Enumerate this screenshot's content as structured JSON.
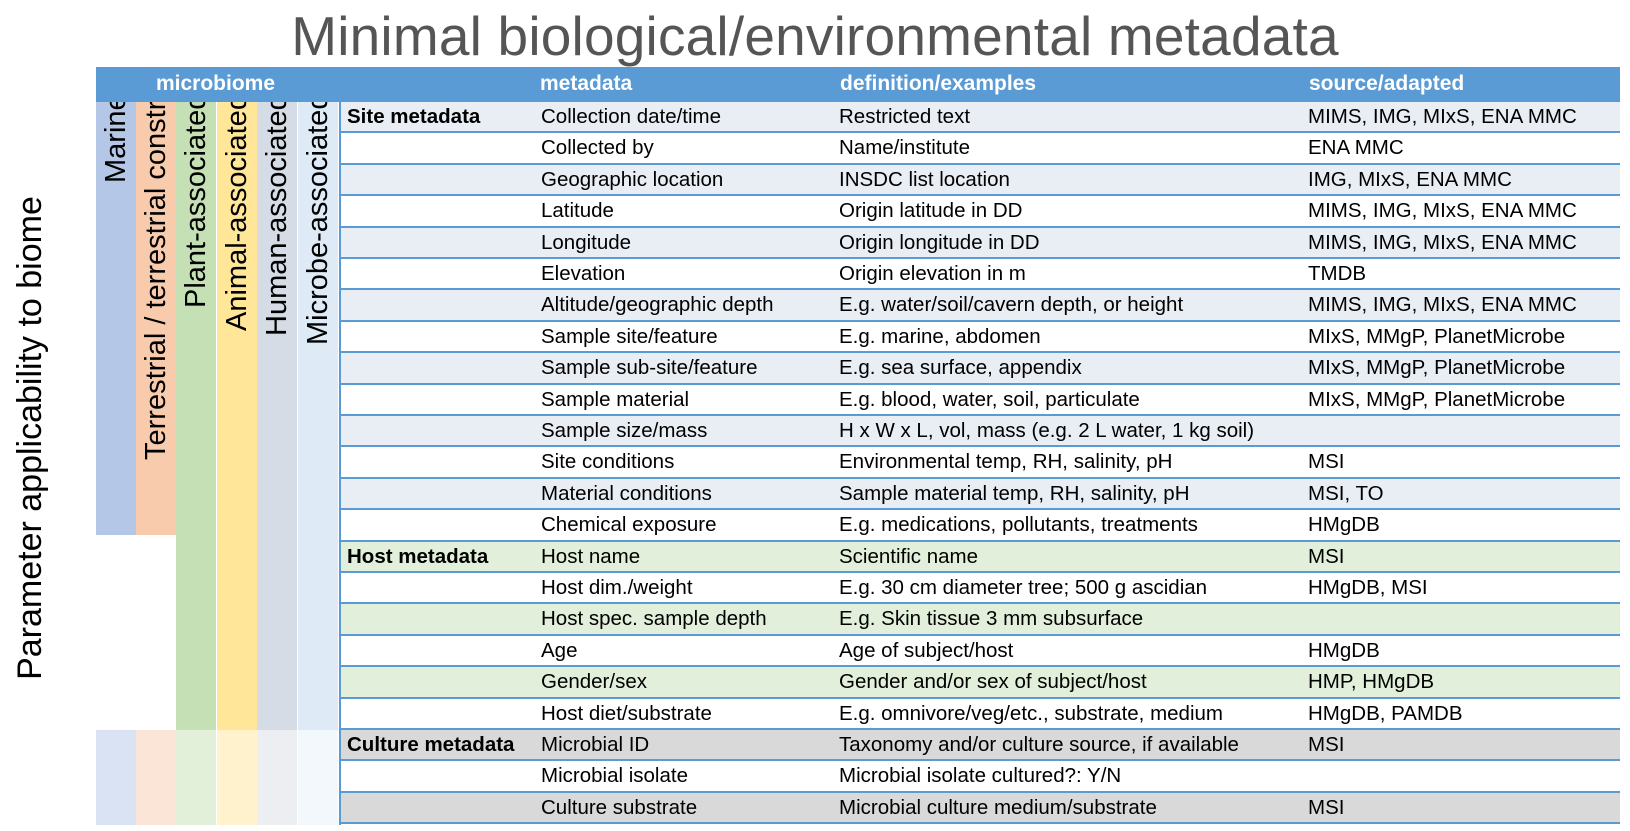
{
  "title": "Minimal biological/environmental metadata",
  "y_axis_label": "Parameter applicability to biome",
  "header": {
    "microbiome": "microbiome",
    "metadata": "metadata",
    "definition": "definition/examples",
    "source": "source/adapted"
  },
  "biome_columns": [
    {
      "label": "Marine",
      "color": "#b4c7e7",
      "light_color": "#dae3f3"
    },
    {
      "label": "Terrestrial / terrestrial constr.",
      "color": "#f8cbad",
      "light_color": "#fbe5d6"
    },
    {
      "label": "Plant-associated",
      "color": "#c5e0b4",
      "light_color": "#e2f0d9"
    },
    {
      "label": "Animal-associated",
      "color": "#ffe699",
      "light_color": "#fff2cc"
    },
    {
      "label": "Human-associated",
      "color": "#d6dce5",
      "light_color": "#eceef2"
    },
    {
      "label": "Microbe-associated",
      "color": "#deebf7",
      "light_color": "#f3f8fc"
    }
  ],
  "rows": [
    {
      "section": "Site metadata",
      "metadata": "Collection date/time",
      "definition": "Restricted text",
      "source": "MIMS, IMG, MIxS, ENA MMC",
      "bg": "#e9edf4"
    },
    {
      "section": "",
      "metadata": "Collected by",
      "definition": "Name/institute",
      "source": "ENA MMC",
      "bg": "#ffffff"
    },
    {
      "section": "",
      "metadata": "Geographic location",
      "definition": "INSDC list location",
      "source": "IMG, MIxS, ENA MMC",
      "bg": "#e9edf4"
    },
    {
      "section": "",
      "metadata": "Latitude",
      "definition": "Origin latitude in DD",
      "source": "MIMS, IMG, MIxS, ENA MMC",
      "bg": "#ffffff"
    },
    {
      "section": "",
      "metadata": "Longitude",
      "definition": "Origin longitude in DD",
      "source": "MIMS, IMG, MIxS, ENA MMC",
      "bg": "#e9edf4"
    },
    {
      "section": "",
      "metadata": "Elevation",
      "definition": "Origin elevation in m",
      "source": "TMDB",
      "bg": "#ffffff"
    },
    {
      "section": "",
      "metadata": "Altitude/geographic depth",
      "definition": "E.g. water/soil/cavern depth, or height",
      "source": "MIMS, IMG, MIxS, ENA MMC",
      "bg": "#e9edf4"
    },
    {
      "section": "",
      "metadata": "Sample site/feature",
      "definition": "E.g. marine, abdomen",
      "source": "MIxS, MMgP, PlanetMicrobe",
      "bg": "#ffffff"
    },
    {
      "section": "",
      "metadata": "Sample sub-site/feature",
      "definition": "E.g. sea surface, appendix",
      "source": "MIxS, MMgP, PlanetMicrobe",
      "bg": "#e9edf4"
    },
    {
      "section": "",
      "metadata": "Sample material",
      "definition": "E.g. blood, water, soil, particulate",
      "source": "MIxS, MMgP, PlanetMicrobe",
      "bg": "#ffffff"
    },
    {
      "section": "",
      "metadata": "Sample size/mass",
      "definition": "H x W x L, vol, mass (e.g. 2 L water, 1 kg soil)",
      "source": "",
      "bg": "#e9edf4"
    },
    {
      "section": "",
      "metadata": "Site conditions",
      "definition": "Environmental temp, RH, salinity, pH",
      "source": "MSI",
      "bg": "#ffffff"
    },
    {
      "section": "",
      "metadata": "Material conditions",
      "definition": "Sample material temp, RH, salinity, pH",
      "source": "MSI, TO",
      "bg": "#e9edf4"
    },
    {
      "section": "",
      "metadata": "Chemical exposure",
      "definition": "E.g. medications, pollutants, treatments",
      "source": "HMgDB",
      "bg": "#ffffff"
    },
    {
      "section": "Host metadata",
      "metadata": "Host name",
      "definition": "Scientific name",
      "source": "MSI",
      "bg": "#e2efda"
    },
    {
      "section": "",
      "metadata": "Host dim./weight",
      "definition": "E.g. 30 cm diameter tree; 500 g ascidian",
      "source": "HMgDB, MSI",
      "bg": "#ffffff"
    },
    {
      "section": "",
      "metadata": "Host spec. sample depth",
      "definition": "E.g. Skin tissue 3 mm subsurface",
      "source": "",
      "bg": "#e2efda"
    },
    {
      "section": "",
      "metadata": "Age",
      "definition": "Age of subject/host",
      "source": "HMgDB",
      "bg": "#ffffff"
    },
    {
      "section": "",
      "metadata": "Gender/sex",
      "definition": "Gender and/or sex of subject/host",
      "source": "HMP, HMgDB",
      "bg": "#e2efda"
    },
    {
      "section": "",
      "metadata": "Host diet/substrate",
      "definition": "E.g. omnivore/veg/etc., substrate, medium",
      "source": "HMgDB, PAMDB",
      "bg": "#ffffff"
    },
    {
      "section": "Culture metadata",
      "metadata": "Microbial ID",
      "definition": "Taxonomy and/or culture source, if available",
      "source": "MSI",
      "bg": "#d9d9d9"
    },
    {
      "section": "",
      "metadata": "Microbial isolate",
      "definition": "Microbial isolate cultured?: Y/N",
      "source": "",
      "bg": "#ffffff"
    },
    {
      "section": "",
      "metadata": "Culture substrate",
      "definition": "Microbial culture medium/substrate",
      "source": "MSI",
      "bg": "#d9d9d9"
    }
  ]
}
